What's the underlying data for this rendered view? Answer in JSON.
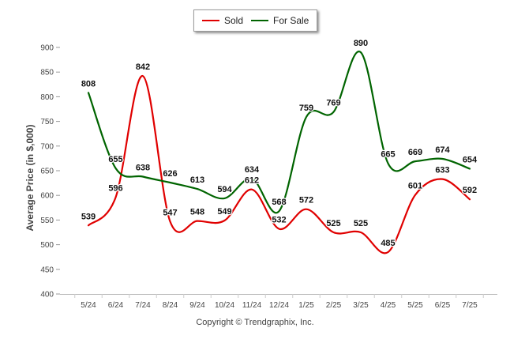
{
  "legend": {
    "sold_label": "Sold",
    "for_sale_label": "For Sale"
  },
  "credits": "Copyright © Trendgraphix, Inc.",
  "chart_data": {
    "type": "line",
    "title": "",
    "xlabel": "",
    "ylabel": "Average Price (in $,000)",
    "ylim": [
      400,
      900
    ],
    "ytick_step": 50,
    "grid": false,
    "legend_position": "top-center",
    "categories": [
      "5/24",
      "6/24",
      "7/24",
      "8/24",
      "9/24",
      "10/24",
      "11/24",
      "12/24",
      "1/25",
      "2/25",
      "3/25",
      "4/25",
      "5/25",
      "6/25",
      "7/25"
    ],
    "series": [
      {
        "name": "Sold",
        "color": "#e00000",
        "values": [
          539,
          596,
          842,
          547,
          548,
          549,
          612,
          532,
          572,
          525,
          525,
          485,
          601,
          633,
          592
        ]
      },
      {
        "name": "For Sale",
        "color": "#006400",
        "values": [
          808,
          655,
          638,
          626,
          613,
          594,
          634,
          568,
          759,
          769,
          890,
          665,
          669,
          674,
          654
        ]
      }
    ]
  }
}
